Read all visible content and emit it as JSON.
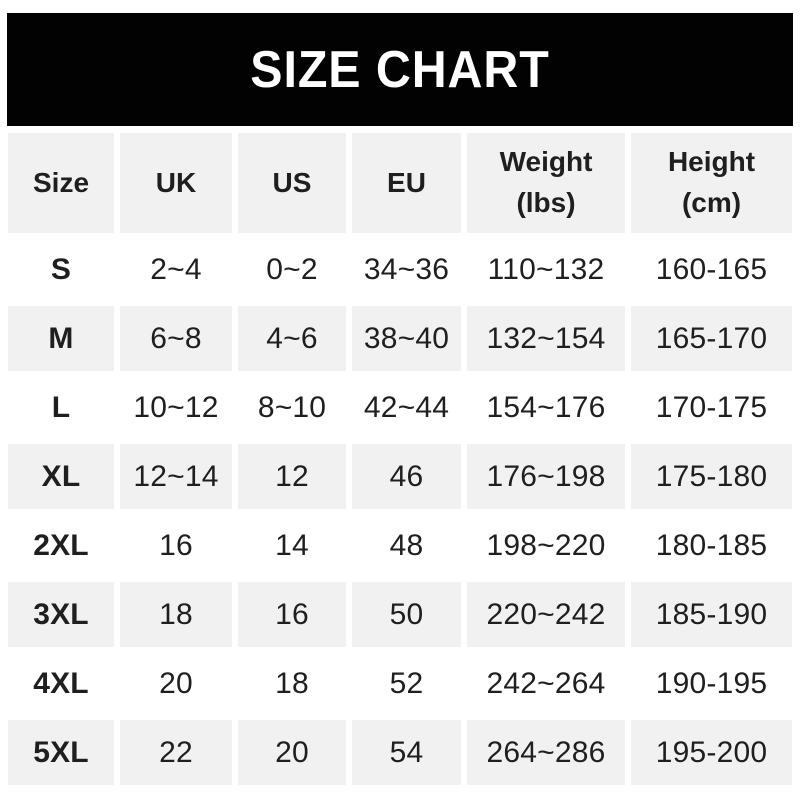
{
  "banner": {
    "title": "SIZE CHART"
  },
  "colors": {
    "banner_bg": "#000000",
    "banner_text": "#ffffff",
    "cell_bg": "#ffffff",
    "cell_bg_alt": "#f1f1f1",
    "text": "#1f1f1f"
  },
  "chart_data": {
    "type": "table",
    "title": "SIZE CHART",
    "columns": [
      "Size",
      "UK",
      "US",
      "EU",
      "Weight\n(lbs)",
      "Height\n(cm)"
    ],
    "rows": [
      [
        "S",
        "2~4",
        "0~2",
        "34~36",
        "110~132",
        "160-165"
      ],
      [
        "M",
        "6~8",
        "4~6",
        "38~40",
        "132~154",
        "165-170"
      ],
      [
        "L",
        "10~12",
        "8~10",
        "42~44",
        "154~176",
        "170-175"
      ],
      [
        "XL",
        "12~14",
        "12",
        "46",
        "176~198",
        "175-180"
      ],
      [
        "2XL",
        "16",
        "14",
        "48",
        "198~220",
        "180-185"
      ],
      [
        "3XL",
        "18",
        "16",
        "50",
        "220~242",
        "185-190"
      ],
      [
        "4XL",
        "20",
        "18",
        "52",
        "242~264",
        "190-195"
      ],
      [
        "5XL",
        "22",
        "20",
        "54",
        "264~286",
        "195-200"
      ]
    ],
    "layout": {
      "striped_rows": true,
      "stripe_order": "white-first",
      "header_background": "#f1f1f1",
      "title_banner_background": "#000000"
    }
  }
}
